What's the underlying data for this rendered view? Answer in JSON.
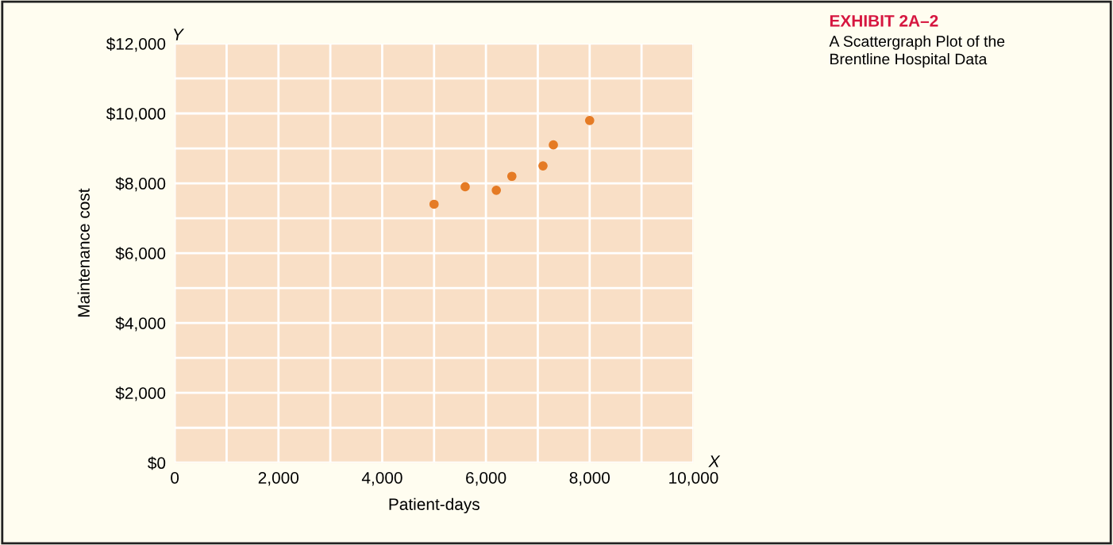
{
  "chart_data": {
    "type": "scatter",
    "title": "EXHIBIT 2A–2",
    "subtitle": "A Scattergraph Plot of the\nBrentline Hospital Data",
    "xlabel": "Patient-days",
    "ylabel": "Maintenance cost",
    "annotations": [
      "Y",
      "X"
    ],
    "x": [
      5000,
      5600,
      6200,
      6500,
      7100,
      7300,
      8000
    ],
    "series": [
      {
        "color": "#e57b25",
        "values": [
          7400,
          7900,
          7800,
          8200,
          8500,
          9100,
          9800
        ]
      }
    ],
    "xlim": [
      0,
      10000
    ],
    "ylim": [
      0,
      12000
    ],
    "xticks": [
      {
        "value": 0,
        "label": "0"
      },
      {
        "value": 1000,
        "label": null
      },
      {
        "value": 2000,
        "label": "2,000"
      },
      {
        "value": 3000,
        "label": null
      },
      {
        "value": 4000,
        "label": "4,000"
      },
      {
        "value": 5000,
        "label": null
      },
      {
        "value": 6000,
        "label": "6,000"
      },
      {
        "value": 7000,
        "label": null
      },
      {
        "value": 8000,
        "label": "8,000"
      },
      {
        "value": 9000,
        "label": null
      },
      {
        "value": 10000,
        "label": "10,000"
      }
    ],
    "yticks": [
      {
        "value": 0,
        "label": "$0"
      },
      {
        "value": 1000,
        "label": null
      },
      {
        "value": 2000,
        "label": "$2,000"
      },
      {
        "value": 3000,
        "label": null
      },
      {
        "value": 4000,
        "label": "$4,000"
      },
      {
        "value": 5000,
        "label": null
      },
      {
        "value": 6000,
        "label": "$6,000"
      },
      {
        "value": 7000,
        "label": null
      },
      {
        "value": 8000,
        "label": "$8,000"
      },
      {
        "value": 9000,
        "label": null
      },
      {
        "value": 10000,
        "label": "$10,000"
      },
      {
        "value": 11000,
        "label": null
      },
      {
        "value": 12000,
        "label": "$12,000"
      }
    ],
    "grid": true,
    "marker": "circle"
  }
}
